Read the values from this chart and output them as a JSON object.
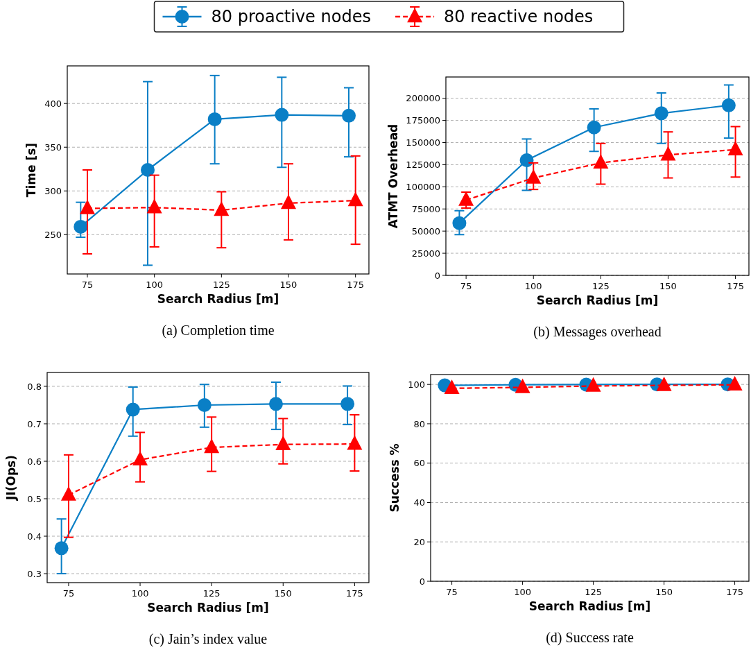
{
  "chart_data": [
    {
      "type": "line",
      "title": "(a) Completion time",
      "xlabel": "Search Radius [m]",
      "ylabel": "Time [s]",
      "xlim": [
        67.5,
        180
      ],
      "xticks": [
        75,
        100,
        125,
        150,
        175
      ],
      "ylim": [
        205,
        443
      ],
      "yticks": [
        250,
        300,
        350,
        400
      ],
      "grid": "y",
      "legend": "top",
      "series": [
        {
          "name": "80 proactive nodes",
          "color": "#0a7fc6",
          "marker": "circle",
          "line_style": "solid",
          "x": [
            72.5,
            97.5,
            122.5,
            147.5,
            172.5
          ],
          "values": [
            259,
            324,
            382,
            387,
            386
          ],
          "errors": [
            [
              247,
              287
            ],
            [
              215,
              425
            ],
            [
              331,
              432
            ],
            [
              327,
              430
            ],
            [
              339,
              418
            ]
          ]
        },
        {
          "name": "80 reactive nodes",
          "color": "#ff0000",
          "marker": "triangle",
          "line_style": "dashed",
          "x": [
            75,
            100,
            125,
            150,
            175
          ],
          "values": [
            280,
            281,
            278,
            286,
            289
          ],
          "errors": [
            [
              228,
              324
            ],
            [
              236,
              318
            ],
            [
              235,
              299
            ],
            [
              244,
              331
            ],
            [
              239,
              340
            ]
          ]
        }
      ]
    },
    {
      "type": "line",
      "title": "(b) Messages overhead",
      "xlabel": "Search Radius [m]",
      "ylabel": "ATMT Overhead",
      "xlim": [
        67.5,
        180
      ],
      "xticks": [
        75,
        100,
        125,
        150,
        175
      ],
      "ylim": [
        0,
        224000
      ],
      "yticks": [
        0,
        25000,
        50000,
        75000,
        100000,
        125000,
        150000,
        175000,
        200000
      ],
      "grid": "y",
      "series": [
        {
          "color": "#0a7fc6",
          "marker": "circle",
          "line_style": "solid",
          "x": [
            72.5,
            97.5,
            122.5,
            147.5,
            172.5
          ],
          "values": [
            59000,
            130000,
            167000,
            183000,
            192000
          ],
          "errors": [
            [
              46000,
              73000
            ],
            [
              96000,
              154000
            ],
            [
              140000,
              188000
            ],
            [
              149000,
              206000
            ],
            [
              155000,
              215000
            ]
          ]
        },
        {
          "color": "#ff0000",
          "marker": "triangle",
          "line_style": "dashed",
          "x": [
            75,
            100,
            125,
            150,
            175
          ],
          "values": [
            85000,
            110000,
            127000,
            136000,
            142000
          ],
          "errors": [
            [
              76000,
              94000
            ],
            [
              97000,
              127000
            ],
            [
              103000,
              149000
            ],
            [
              110000,
              162000
            ],
            [
              111000,
              168000
            ]
          ]
        }
      ]
    },
    {
      "type": "line",
      "title": "(c) Jain’s index value",
      "xlabel": "Search Radius [m]",
      "ylabel": "JI(Ops)",
      "xlim": [
        67.5,
        180
      ],
      "xticks": [
        75,
        100,
        125,
        150,
        175
      ],
      "ylim": [
        0.276,
        0.837
      ],
      "yticks": [
        0.3,
        0.4,
        0.5,
        0.6,
        0.7,
        0.8
      ],
      "grid": "y",
      "series": [
        {
          "color": "#0a7fc6",
          "marker": "circle",
          "line_style": "solid",
          "x": [
            72.5,
            97.5,
            122.5,
            147.5,
            172.5
          ],
          "values": [
            0.368,
            0.738,
            0.75,
            0.753,
            0.753
          ],
          "errors": [
            [
              0.3,
              0.446
            ],
            [
              0.667,
              0.798
            ],
            [
              0.691,
              0.805
            ],
            [
              0.685,
              0.811
            ],
            [
              0.698,
              0.801
            ]
          ]
        },
        {
          "color": "#ff0000",
          "marker": "triangle",
          "line_style": "dashed",
          "x": [
            75,
            100,
            125,
            150,
            175
          ],
          "values": [
            0.51,
            0.604,
            0.637,
            0.645,
            0.646
          ],
          "errors": [
            [
              0.397,
              0.617
            ],
            [
              0.545,
              0.677
            ],
            [
              0.573,
              0.718
            ],
            [
              0.593,
              0.714
            ],
            [
              0.574,
              0.724
            ]
          ]
        }
      ]
    },
    {
      "type": "line",
      "title": "(d) Success rate",
      "xlabel": "Search Radius [m]",
      "ylabel": "Success %",
      "xlim": [
        67.5,
        180
      ],
      "xticks": [
        75,
        100,
        125,
        150,
        175
      ],
      "ylim": [
        0,
        105
      ],
      "yticks": [
        0,
        20,
        40,
        60,
        80,
        100
      ],
      "grid": "y",
      "series": [
        {
          "color": "#0a7fc6",
          "marker": "circle",
          "line_style": "solid",
          "x": [
            72.5,
            97.5,
            122.5,
            147.5,
            172.5
          ],
          "values": [
            99.5,
            99.8,
            99.9,
            100,
            100
          ]
        },
        {
          "color": "#ff0000",
          "marker": "triangle",
          "line_style": "dashed",
          "x": [
            75,
            100,
            125,
            150,
            175
          ],
          "values": [
            98,
            98.5,
            99.2,
            99.5,
            99.8
          ]
        }
      ]
    }
  ]
}
